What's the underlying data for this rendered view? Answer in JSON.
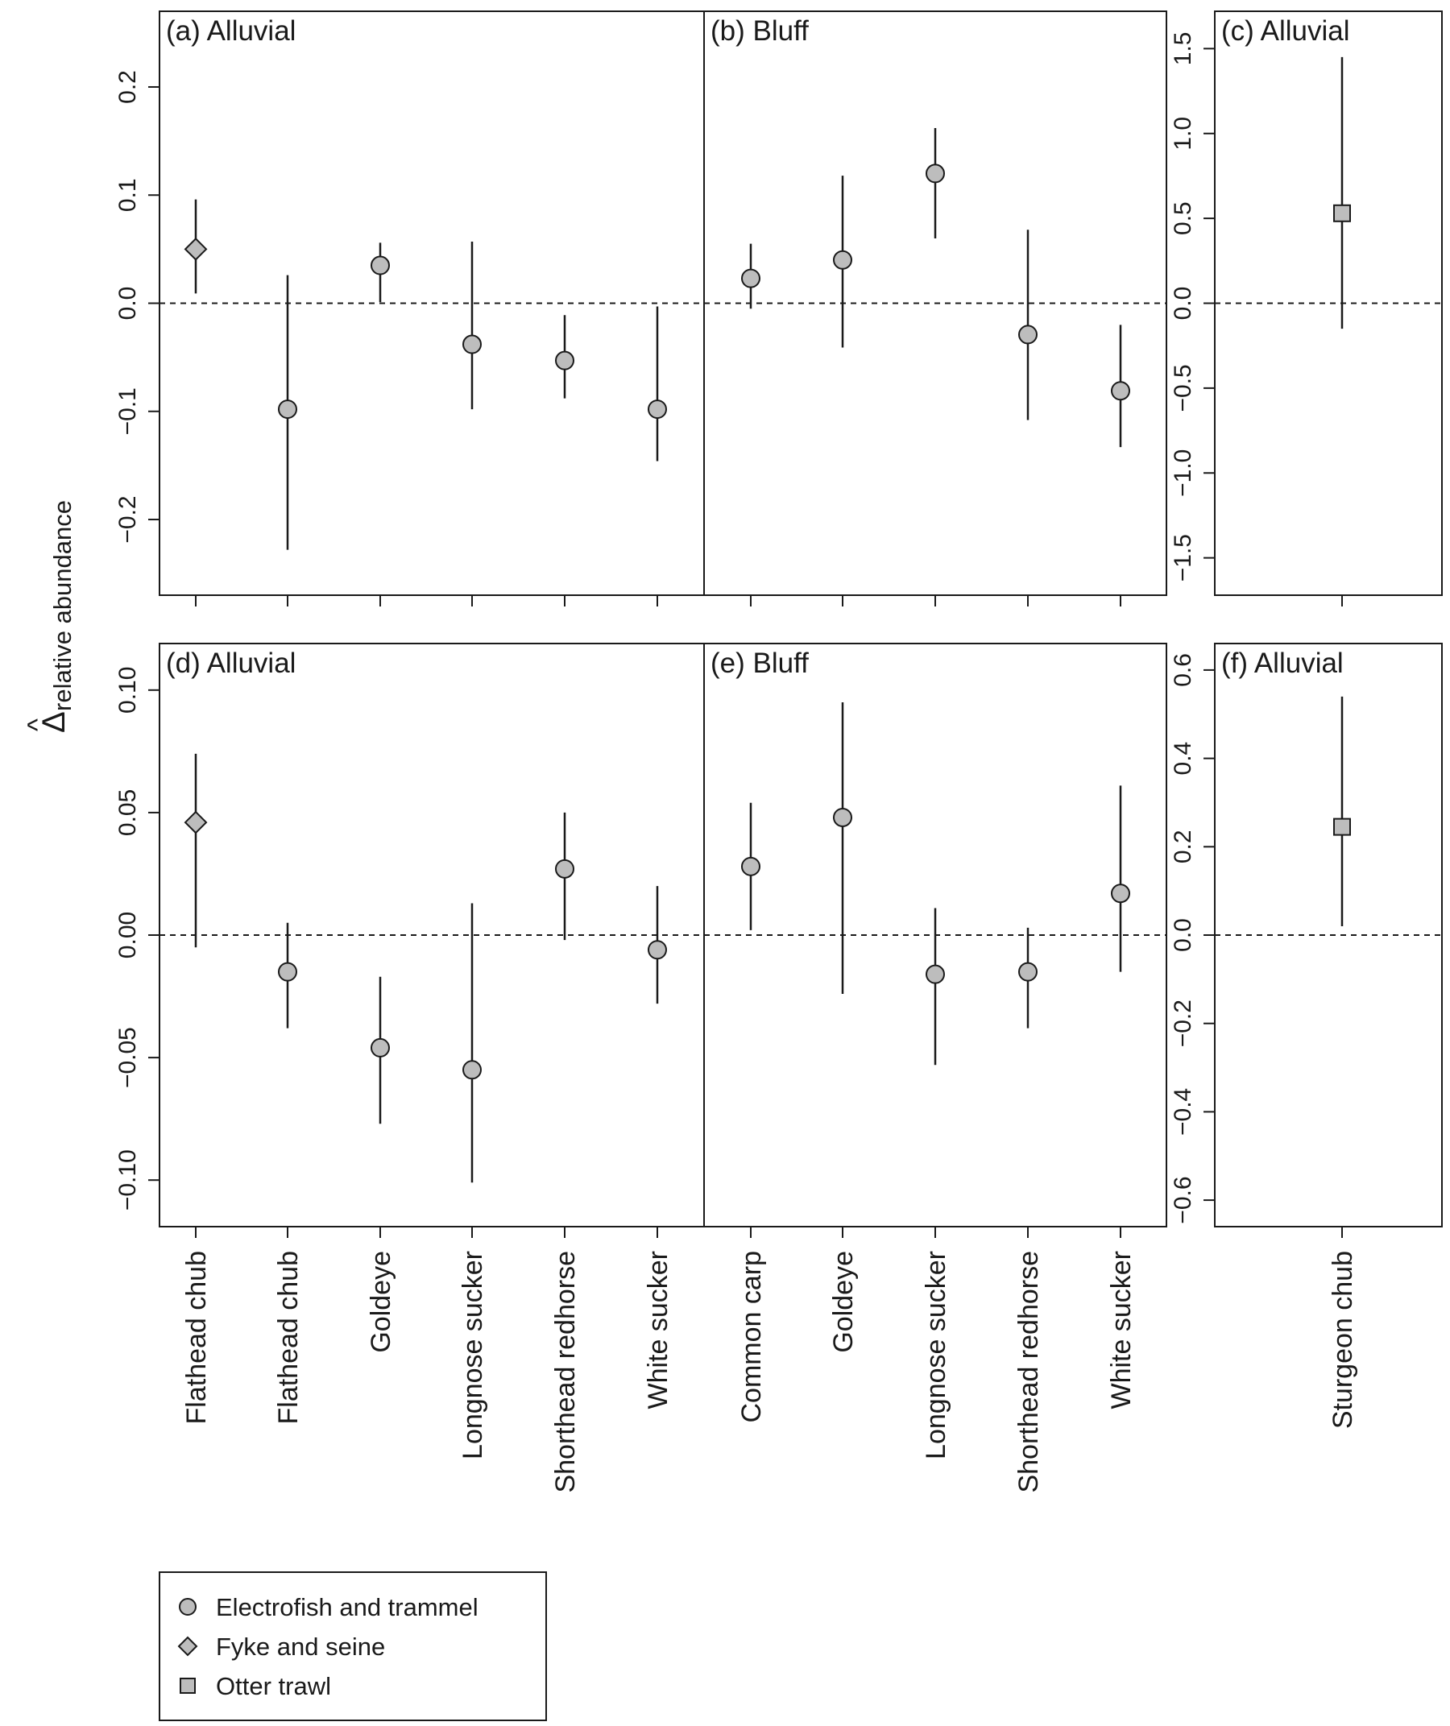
{
  "figure": {
    "y_axis_label_main": "Δ",
    "y_axis_label_sub": "relative abundance",
    "y_axis_label_hat": "^"
  },
  "legend": {
    "placement": "bottom-left",
    "items": [
      {
        "label": "Electrofish and trammel",
        "shape": "circle"
      },
      {
        "label": "Fyke and seine",
        "shape": "diamond"
      },
      {
        "label": "Otter trawl",
        "shape": "square"
      }
    ]
  },
  "colors": {
    "marker_fill": "#bdbdbd",
    "line": "#1a1a1a",
    "background": "#ffffff"
  },
  "x_tick_labels_left": [
    "Flathead chub",
    "Flathead chub",
    "Goldeye",
    "Longnose sucker",
    "Shorthead redhorse",
    "White sucker",
    "Common carp",
    "Goldeye",
    "Longnose sucker",
    "Shorthead redhorse",
    "White sucker"
  ],
  "x_tick_labels_right": [
    "Sturgeon chub"
  ],
  "chart_data": [
    {
      "type": "scatter",
      "panel": "(a) Alluvial",
      "row": "top",
      "ylim": [
        -0.27,
        0.27
      ],
      "yticks": [
        -0.2,
        -0.1,
        0.0,
        0.1,
        0.2
      ],
      "yticklabels": [
        "-0.2",
        "-0.1",
        "0.0",
        "0.1",
        "0.2"
      ],
      "reference_line": 0,
      "categories": [
        "Flathead chub",
        "Flathead chub",
        "Goldeye",
        "Longnose sucker",
        "Shorthead redhorse",
        "White sucker"
      ],
      "points": [
        {
          "estimate": 0.05,
          "lower": 0.009,
          "upper": 0.096,
          "method": "diamond"
        },
        {
          "estimate": -0.098,
          "lower": -0.228,
          "upper": 0.026,
          "method": "circle"
        },
        {
          "estimate": 0.035,
          "lower": 0.001,
          "upper": 0.056,
          "method": "circle"
        },
        {
          "estimate": -0.038,
          "lower": -0.098,
          "upper": 0.057,
          "method": "circle"
        },
        {
          "estimate": -0.053,
          "lower": -0.088,
          "upper": -0.011,
          "method": "circle"
        },
        {
          "estimate": -0.098,
          "lower": -0.146,
          "upper": -0.003,
          "method": "circle"
        }
      ]
    },
    {
      "type": "scatter",
      "panel": "(b) Bluff",
      "row": "top",
      "ylim": [
        -0.27,
        0.27
      ],
      "reference_line": 0,
      "categories": [
        "Common carp",
        "Goldeye",
        "Longnose sucker",
        "Shorthead redhorse",
        "White sucker"
      ],
      "points": [
        {
          "estimate": 0.023,
          "lower": -0.005,
          "upper": 0.055,
          "method": "circle"
        },
        {
          "estimate": 0.04,
          "lower": -0.041,
          "upper": 0.118,
          "method": "circle"
        },
        {
          "estimate": 0.12,
          "lower": 0.06,
          "upper": 0.162,
          "method": "circle"
        },
        {
          "estimate": -0.029,
          "lower": -0.108,
          "upper": 0.068,
          "method": "circle"
        },
        {
          "estimate": -0.081,
          "lower": -0.133,
          "upper": -0.02,
          "method": "circle"
        }
      ]
    },
    {
      "type": "scatter",
      "panel": "(c) Alluvial",
      "row": "top",
      "ylim": [
        -1.72,
        1.72
      ],
      "yticks": [
        -1.5,
        -1.0,
        -0.5,
        0.0,
        0.5,
        1.0,
        1.5
      ],
      "yticklabels": [
        "-1.5",
        "-1.0",
        "-0.5",
        "0.0",
        "0.5",
        "1.0",
        "1.5"
      ],
      "reference_line": 0,
      "categories": [
        "Sturgeon chub"
      ],
      "points": [
        {
          "estimate": 0.53,
          "lower": -0.15,
          "upper": 1.45,
          "method": "square"
        }
      ]
    },
    {
      "type": "scatter",
      "panel": "(d) Alluvial",
      "row": "bottom",
      "ylim": [
        -0.119,
        0.119
      ],
      "yticks": [
        -0.1,
        -0.05,
        0.0,
        0.05,
        0.1
      ],
      "yticklabels": [
        "-0.10",
        "-0.05",
        "0.00",
        "0.05",
        "0.10"
      ],
      "reference_line": 0,
      "categories": [
        "Flathead chub",
        "Flathead chub",
        "Goldeye",
        "Longnose sucker",
        "Shorthead redhorse",
        "White sucker"
      ],
      "points": [
        {
          "estimate": 0.046,
          "lower": -0.005,
          "upper": 0.074,
          "method": "diamond"
        },
        {
          "estimate": -0.015,
          "lower": -0.038,
          "upper": 0.005,
          "method": "circle"
        },
        {
          "estimate": -0.046,
          "lower": -0.077,
          "upper": -0.017,
          "method": "circle"
        },
        {
          "estimate": -0.055,
          "lower": -0.101,
          "upper": 0.013,
          "method": "circle"
        },
        {
          "estimate": 0.027,
          "lower": -0.002,
          "upper": 0.05,
          "method": "circle"
        },
        {
          "estimate": -0.006,
          "lower": -0.028,
          "upper": 0.02,
          "method": "circle"
        }
      ]
    },
    {
      "type": "scatter",
      "panel": "(e) Bluff",
      "row": "bottom",
      "ylim": [
        -0.119,
        0.119
      ],
      "reference_line": 0,
      "categories": [
        "Common carp",
        "Goldeye",
        "Longnose sucker",
        "Shorthead redhorse",
        "White sucker"
      ],
      "points": [
        {
          "estimate": 0.028,
          "lower": 0.002,
          "upper": 0.054,
          "method": "circle"
        },
        {
          "estimate": 0.048,
          "lower": -0.024,
          "upper": 0.095,
          "method": "circle"
        },
        {
          "estimate": -0.016,
          "lower": -0.053,
          "upper": 0.011,
          "method": "circle"
        },
        {
          "estimate": -0.015,
          "lower": -0.038,
          "upper": 0.003,
          "method": "circle"
        },
        {
          "estimate": 0.017,
          "lower": -0.015,
          "upper": 0.061,
          "method": "circle"
        }
      ]
    },
    {
      "type": "scatter",
      "panel": "(f) Alluvial",
      "row": "bottom",
      "ylim": [
        -0.66,
        0.66
      ],
      "yticks": [
        -0.6,
        -0.4,
        -0.2,
        0.0,
        0.2,
        0.4,
        0.6
      ],
      "yticklabels": [
        "-0.6",
        "-0.4",
        "-0.2",
        "0.0",
        "0.2",
        "0.4",
        "0.6"
      ],
      "reference_line": 0,
      "categories": [
        "Sturgeon chub"
      ],
      "points": [
        {
          "estimate": 0.245,
          "lower": 0.02,
          "upper": 0.54,
          "method": "square"
        }
      ]
    }
  ]
}
